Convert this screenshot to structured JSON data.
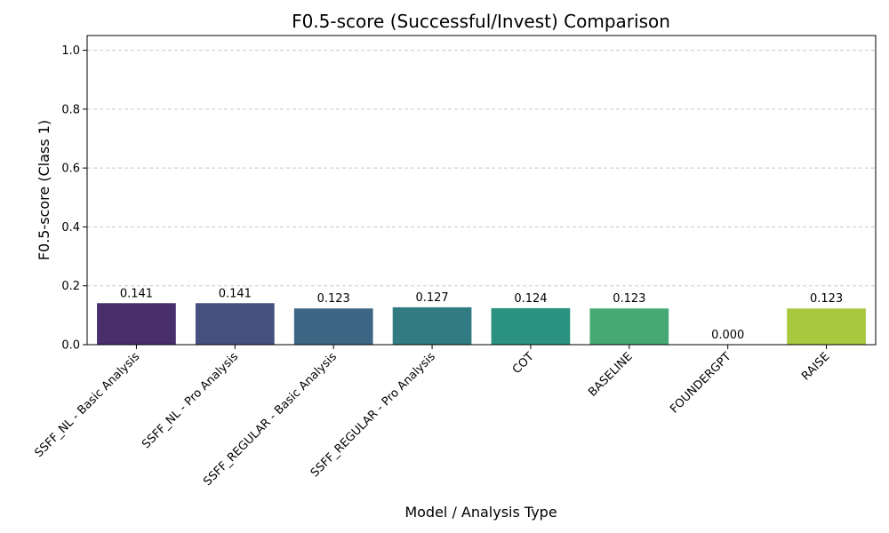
{
  "chart_data": {
    "type": "bar",
    "title": "F0.5-score (Successful/Invest) Comparison",
    "xlabel": "Model / Analysis Type",
    "ylabel": "F0.5-score (Class 1)",
    "categories": [
      "SSFF_NL - Basic Analysis",
      "SSFF_NL - Pro Analysis",
      "SSFF_REGULAR - Basic Analysis",
      "SSFF_REGULAR - Pro Analysis",
      "COT",
      "BASELINE",
      "FOUNDERGPT",
      "RAISE"
    ],
    "values": [
      0.141,
      0.141,
      0.123,
      0.127,
      0.124,
      0.123,
      0.0,
      0.123
    ],
    "value_labels": [
      "0.141",
      "0.141",
      "0.123",
      "0.127",
      "0.124",
      "0.123",
      "0.000",
      "0.123"
    ],
    "colors": [
      "#482f6b",
      "#46507f",
      "#3d6584",
      "#337b82",
      "#2b9280",
      "#46a974",
      "#8bc34a",
      "#a8c840"
    ],
    "ylim": [
      0,
      1.05
    ],
    "yticks": [
      "0.0",
      "0.2",
      "0.4",
      "0.6",
      "0.8",
      "1.0"
    ],
    "ytick_values": [
      0.0,
      0.2,
      0.4,
      0.6,
      0.8,
      1.0
    ],
    "grid": "y-dashed"
  }
}
